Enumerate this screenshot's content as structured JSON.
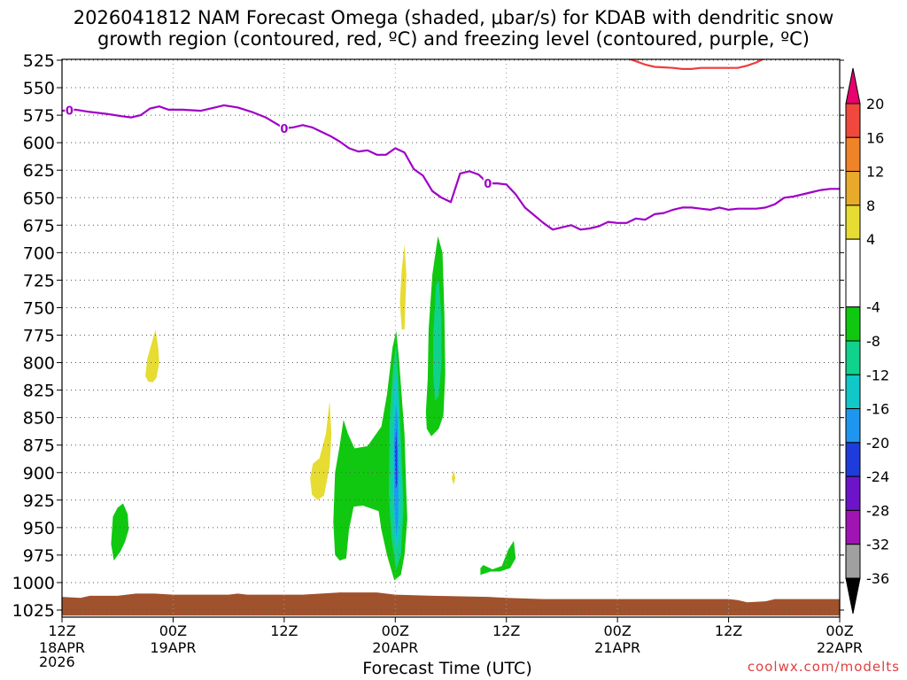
{
  "title_line_1": "2026041812 NAM Forecast Omega (shaded, μbar/s) for KDAB with dendritic snow",
  "title_line_2": "growth region (contoured, red, ºC) and freezing level (contoured, purple, ºC)",
  "credit": "coolwx.com/modelts",
  "chart_data": {
    "type": "heatmap",
    "title": "2026041812 NAM Forecast Omega (shaded, μbar/s) for KDAB with dendritic snow growth region (contoured, red, ºC) and freezing level (contoured, purple, ºC)",
    "xlabel": "Forecast Time (UTC)",
    "ylabel": "",
    "x_hours_range": [
      0,
      84
    ],
    "y_pressure_range": [
      525,
      1030
    ],
    "grid": true,
    "x_ticks": [
      {
        "hour": 0,
        "label": "12Z",
        "date": "18APR"
      },
      {
        "hour": 12,
        "label": "00Z",
        "date": "19APR"
      },
      {
        "hour": 24,
        "label": "12Z",
        "date": ""
      },
      {
        "hour": 36,
        "label": "00Z",
        "date": "20APR"
      },
      {
        "hour": 48,
        "label": "12Z",
        "date": ""
      },
      {
        "hour": 60,
        "label": "00Z",
        "date": "21APR"
      },
      {
        "hour": 72,
        "label": "12Z",
        "date": ""
      },
      {
        "hour": 84,
        "label": "00Z",
        "date": "22APR"
      }
    ],
    "year_label": "2026",
    "y_ticks": [
      525,
      550,
      575,
      600,
      625,
      650,
      675,
      700,
      725,
      750,
      775,
      800,
      825,
      850,
      875,
      900,
      925,
      950,
      975,
      1000,
      1025
    ],
    "colorbar": {
      "labels": [
        20,
        16,
        12,
        8,
        4,
        -4,
        -8,
        -12,
        -16,
        -20,
        -24,
        -28,
        -32,
        -36
      ],
      "bins": [
        {
          "from": 20,
          "to": 24,
          "color": "#e8006e"
        },
        {
          "from": 16,
          "to": 20,
          "color": "#f0483c"
        },
        {
          "from": 12,
          "to": 16,
          "color": "#f08228"
        },
        {
          "from": 8,
          "to": 12,
          "color": "#e8aa2a"
        },
        {
          "from": 4,
          "to": 8,
          "color": "#e6dc32"
        },
        {
          "from": -4,
          "to": 4,
          "color": "#ffffff"
        },
        {
          "from": -8,
          "to": -4,
          "color": "#10c810"
        },
        {
          "from": -12,
          "to": -8,
          "color": "#10d28c"
        },
        {
          "from": -16,
          "to": -12,
          "color": "#10c8c8"
        },
        {
          "from": -20,
          "to": -16,
          "color": "#1e96f0"
        },
        {
          "from": -24,
          "to": -20,
          "color": "#1e3cdc"
        },
        {
          "from": -28,
          "to": -24,
          "color": "#6e14c8"
        },
        {
          "from": -32,
          "to": -28,
          "color": "#a014b4"
        },
        {
          "from": -36,
          "to": -32,
          "color": "#a0a0a0"
        },
        {
          "from": -40,
          "to": -36,
          "color": "#000000"
        }
      ]
    },
    "freezing_level": {
      "label": "0",
      "color": "#a000c8",
      "points": [
        [
          0,
          571
        ],
        [
          1.5,
          570
        ],
        [
          3,
          572
        ],
        [
          5,
          574
        ],
        [
          6.5,
          576
        ],
        [
          7.5,
          577
        ],
        [
          8.5,
          575
        ],
        [
          9.5,
          569
        ],
        [
          10.5,
          567
        ],
        [
          11.5,
          570
        ],
        [
          13,
          570
        ],
        [
          15,
          571
        ],
        [
          16.5,
          568
        ],
        [
          17.5,
          566
        ],
        [
          19,
          568
        ],
        [
          20.5,
          572
        ],
        [
          22,
          577
        ],
        [
          23,
          582
        ],
        [
          24,
          587
        ],
        [
          25,
          586
        ],
        [
          26,
          584
        ],
        [
          27,
          586
        ],
        [
          28,
          590
        ],
        [
          29,
          594
        ],
        [
          30,
          599
        ],
        [
          31,
          605
        ],
        [
          32,
          608
        ],
        [
          33,
          607
        ],
        [
          34,
          611
        ],
        [
          35,
          611
        ],
        [
          36,
          605
        ],
        [
          37,
          609
        ],
        [
          38,
          624
        ],
        [
          39,
          630
        ],
        [
          40,
          644
        ],
        [
          41,
          650
        ],
        [
          42,
          654
        ],
        [
          43,
          628
        ],
        [
          44,
          626
        ],
        [
          45,
          629
        ],
        [
          46,
          637
        ],
        [
          47,
          637
        ],
        [
          48,
          638
        ],
        [
          49,
          647
        ],
        [
          50,
          659
        ],
        [
          51,
          666
        ],
        [
          52,
          673
        ],
        [
          53,
          679
        ],
        [
          54,
          677
        ],
        [
          55,
          675
        ],
        [
          56,
          679
        ],
        [
          57,
          678
        ],
        [
          58,
          676
        ],
        [
          59,
          672
        ],
        [
          60,
          673
        ],
        [
          61,
          673
        ],
        [
          62,
          669
        ],
        [
          63,
          670
        ],
        [
          64,
          665
        ],
        [
          65,
          664
        ],
        [
          66,
          661
        ],
        [
          67,
          659
        ],
        [
          68,
          659
        ],
        [
          69,
          660
        ],
        [
          70,
          661
        ],
        [
          71,
          659
        ],
        [
          72,
          661
        ],
        [
          73,
          660
        ],
        [
          75,
          660
        ],
        [
          76,
          659
        ],
        [
          77,
          656
        ],
        [
          78,
          650
        ],
        [
          79,
          649
        ],
        [
          80,
          647
        ],
        [
          81,
          645
        ],
        [
          82,
          643
        ],
        [
          83,
          642
        ],
        [
          84,
          642
        ]
      ],
      "label_hours": [
        0.8,
        24,
        46
      ]
    },
    "dendritic_contour": {
      "color": "#f03c3c",
      "points": [
        [
          61,
          523
        ],
        [
          62,
          526
        ],
        [
          63,
          529
        ],
        [
          64,
          531
        ],
        [
          66,
          532
        ],
        [
          67,
          533
        ],
        [
          68,
          533
        ],
        [
          69,
          532
        ],
        [
          71,
          532
        ],
        [
          73,
          532
        ],
        [
          74,
          530
        ],
        [
          75,
          527
        ],
        [
          76,
          523
        ]
      ]
    },
    "terrain": {
      "color": "#a0522d",
      "points": [
        [
          0,
          1013
        ],
        [
          2,
          1014
        ],
        [
          3,
          1012
        ],
        [
          6,
          1012
        ],
        [
          8,
          1010
        ],
        [
          10,
          1010
        ],
        [
          12,
          1011
        ],
        [
          18,
          1011
        ],
        [
          19,
          1010
        ],
        [
          20,
          1011
        ],
        [
          26,
          1011
        ],
        [
          28,
          1010
        ],
        [
          30,
          1009
        ],
        [
          34,
          1009
        ],
        [
          36,
          1011
        ],
        [
          40,
          1012
        ],
        [
          46,
          1013
        ],
        [
          48,
          1014
        ],
        [
          52,
          1015
        ],
        [
          72,
          1015
        ],
        [
          73,
          1016
        ],
        [
          74,
          1018
        ],
        [
          76,
          1017
        ],
        [
          77,
          1015
        ],
        [
          84,
          1015
        ]
      ],
      "bottom": 1030
    },
    "omega_areas": [
      {
        "bin": "4 to 8",
        "color": "#e6dc32",
        "points": [
          [
            9,
            812
          ],
          [
            9.2,
            797
          ],
          [
            9.6,
            785
          ],
          [
            10.1,
            770
          ],
          [
            10.4,
            787
          ],
          [
            10.5,
            800
          ],
          [
            10.2,
            814
          ],
          [
            9.8,
            818
          ],
          [
            9.3,
            817
          ]
        ]
      },
      {
        "bin": "4 to 8",
        "color": "#e6dc32",
        "points": [
          [
            26.8,
            905
          ],
          [
            27.1,
            892
          ],
          [
            27.8,
            887
          ],
          [
            28.5,
            865
          ],
          [
            28.9,
            835
          ],
          [
            29.1,
            865
          ],
          [
            28.9,
            895
          ],
          [
            28.3,
            921
          ],
          [
            27.6,
            925
          ],
          [
            27,
            920
          ]
        ]
      },
      {
        "bin": "4 to 8",
        "color": "#e6dc32",
        "points": [
          [
            36.7,
            770
          ],
          [
            36.5,
            745
          ],
          [
            36.7,
            715
          ],
          [
            37,
            692
          ],
          [
            37.2,
            720
          ],
          [
            37.1,
            745
          ],
          [
            37,
            770
          ]
        ]
      },
      {
        "bin": "4 to 8",
        "color": "#e6dc32",
        "points": [
          [
            42.1,
            905
          ],
          [
            42.3,
            898
          ],
          [
            42.5,
            905
          ],
          [
            42.3,
            911
          ]
        ]
      },
      {
        "bin": "-8 to -4",
        "color": "#10c810",
        "points": [
          [
            5.5,
            940
          ],
          [
            6,
            932
          ],
          [
            6.6,
            928
          ],
          [
            7.1,
            938
          ],
          [
            7.2,
            952
          ],
          [
            6.8,
            963
          ],
          [
            6.3,
            972
          ],
          [
            5.6,
            980
          ],
          [
            5.3,
            965
          ]
        ]
      },
      {
        "bin": "-8 to -4",
        "color": "#10c810",
        "points": [
          [
            29.5,
            975
          ],
          [
            29.3,
            945
          ],
          [
            29.5,
            900
          ],
          [
            30,
            875
          ],
          [
            30.4,
            852
          ],
          [
            30.9,
            865
          ],
          [
            31.6,
            878
          ],
          [
            33,
            876
          ],
          [
            34.5,
            858
          ],
          [
            35.1,
            829
          ],
          [
            35.7,
            786
          ],
          [
            36.1,
            771
          ],
          [
            36.4,
            797
          ],
          [
            37,
            865
          ],
          [
            37.2,
            920
          ],
          [
            37.3,
            942
          ],
          [
            37,
            975
          ],
          [
            36.6,
            993
          ],
          [
            35.9,
            998
          ],
          [
            35.1,
            975
          ],
          [
            34.5,
            952
          ],
          [
            34.2,
            935
          ],
          [
            32.5,
            930
          ],
          [
            31.5,
            931
          ],
          [
            31,
            952
          ],
          [
            30.7,
            978
          ],
          [
            30,
            980
          ]
        ]
      },
      {
        "bin": "-8 to -4",
        "color": "#10c810",
        "points": [
          [
            39.3,
            845
          ],
          [
            39.5,
            815
          ],
          [
            39.6,
            770
          ],
          [
            40,
            720
          ],
          [
            40.6,
            685
          ],
          [
            41.1,
            700
          ],
          [
            41.3,
            755
          ],
          [
            41.4,
            810
          ],
          [
            41.2,
            848
          ],
          [
            40.7,
            860
          ],
          [
            39.9,
            867
          ],
          [
            39.4,
            860
          ]
        ]
      },
      {
        "bin": "-8 to -4",
        "color": "#10c810",
        "points": [
          [
            45.2,
            987
          ],
          [
            45.5,
            984
          ],
          [
            46.5,
            988
          ],
          [
            47.5,
            985
          ],
          [
            48.2,
            970
          ],
          [
            48.8,
            962
          ],
          [
            49,
            978
          ],
          [
            48.4,
            987
          ],
          [
            47.3,
            990
          ],
          [
            46.3,
            990
          ],
          [
            45.2,
            993
          ]
        ]
      },
      {
        "bin": "-12 to -8",
        "color": "#10d28c",
        "points": [
          [
            35.4,
            850
          ],
          [
            35.8,
            802
          ],
          [
            36.1,
            784
          ],
          [
            36.3,
            810
          ],
          [
            36.6,
            870
          ],
          [
            36.9,
            930
          ],
          [
            36.6,
            975
          ],
          [
            36.1,
            988
          ],
          [
            35.6,
            960
          ],
          [
            35.3,
            920
          ]
        ]
      },
      {
        "bin": "-12 to -8",
        "color": "#10d28c",
        "points": [
          [
            40.1,
            775
          ],
          [
            40.4,
            730
          ],
          [
            40.7,
            725
          ],
          [
            41,
            760
          ],
          [
            41,
            800
          ],
          [
            40.7,
            830
          ],
          [
            40.3,
            835
          ],
          [
            40.1,
            810
          ]
        ]
      },
      {
        "bin": "-16 to -12",
        "color": "#10c8c8",
        "points": [
          [
            35.7,
            860
          ],
          [
            35.9,
            818
          ],
          [
            36.2,
            812
          ],
          [
            36.4,
            850
          ],
          [
            36.6,
            905
          ],
          [
            36.5,
            955
          ],
          [
            36.2,
            970
          ],
          [
            35.9,
            955
          ],
          [
            35.7,
            910
          ]
        ]
      },
      {
        "bin": "-20 to -16",
        "color": "#1e96f0",
        "points": [
          [
            35.85,
            870
          ],
          [
            36.05,
            838
          ],
          [
            36.25,
            850
          ],
          [
            36.35,
            900
          ],
          [
            36.3,
            945
          ],
          [
            36.1,
            958
          ],
          [
            35.9,
            930
          ]
        ]
      },
      {
        "bin": "-24 to -20",
        "color": "#1e3cdc",
        "points": [
          [
            35.95,
            880
          ],
          [
            36.1,
            860
          ],
          [
            36.2,
            880
          ],
          [
            36.2,
            910
          ],
          [
            36.05,
            915
          ]
        ]
      }
    ]
  }
}
